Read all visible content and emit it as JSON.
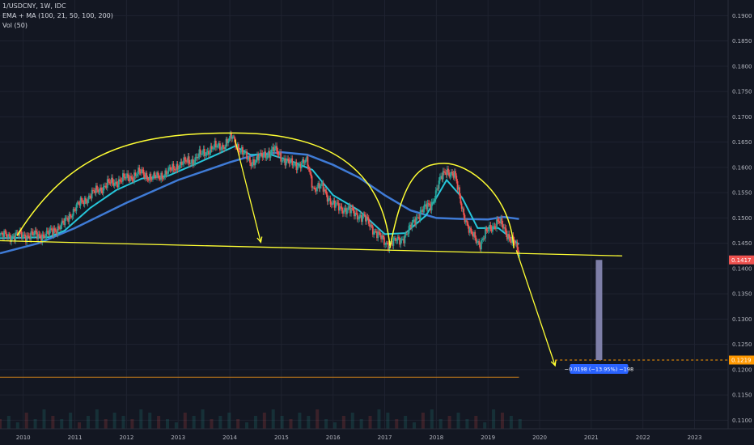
{
  "header": {
    "symbol": "1/USDCNY, 1W, IDC",
    "indicator": "EMA + MA (100, 21, 50, 100, 200)",
    "volume": "Vol (50)"
  },
  "colors": {
    "background": "#131722",
    "grid": "#1f2330",
    "up_candle": "#26a69a",
    "down_candle": "#ef5350",
    "ema_fast": "#26c6da",
    "ma_slow": "#3f7bd6",
    "pattern": "#ffff33",
    "current_price_bg": "#ef5350",
    "target_bg": "#ff9800",
    "measure_bar": "#7e7fa8",
    "measure_label_bg": "#2962ff"
  },
  "chart_data": {
    "type": "line",
    "x_axis": {
      "range": [
        2009.55,
        2023.65
      ],
      "tick_labels": [
        "2010",
        "2011",
        "2012",
        "2013",
        "2014",
        "2015",
        "2016",
        "2017",
        "2018",
        "2019",
        "2020",
        "2021",
        "2022",
        "2023"
      ]
    },
    "y_axis": {
      "range": [
        0.1083,
        0.1931
      ],
      "position": "right",
      "tick_labels": [
        "0.1900",
        "0.1850",
        "0.1800",
        "0.1750",
        "0.1700",
        "0.1650",
        "0.1600",
        "0.1550",
        "0.1500",
        "0.1450",
        "0.1400",
        "0.1350",
        "0.1300",
        "0.1250",
        "0.1200",
        "0.1150",
        "0.1100"
      ]
    },
    "grid": true,
    "series": [
      {
        "kind": "price",
        "points": [
          [
            2009.55,
            0.1465
          ],
          [
            2010.45,
            0.1466
          ],
          [
            2010.8,
            0.149
          ],
          [
            2011.0,
            0.152
          ],
          [
            2011.3,
            0.1545
          ],
          [
            2011.6,
            0.1565
          ],
          [
            2011.9,
            0.1575
          ],
          [
            2012.3,
            0.159
          ],
          [
            2012.5,
            0.1578
          ],
          [
            2012.8,
            0.159
          ],
          [
            2013.0,
            0.1605
          ],
          [
            2013.3,
            0.1615
          ],
          [
            2013.6,
            0.1635
          ],
          [
            2013.9,
            0.1645
          ],
          [
            2014.05,
            0.166
          ],
          [
            2014.2,
            0.1635
          ],
          [
            2014.4,
            0.161
          ],
          [
            2014.6,
            0.162
          ],
          [
            2014.85,
            0.1635
          ],
          [
            2015.0,
            0.162
          ],
          [
            2015.2,
            0.1605
          ],
          [
            2015.5,
            0.161
          ],
          [
            2015.62,
            0.156
          ],
          [
            2015.8,
            0.156
          ],
          [
            2016.0,
            0.1525
          ],
          [
            2016.3,
            0.1515
          ],
          [
            2016.6,
            0.15
          ],
          [
            2016.85,
            0.147
          ],
          [
            2017.0,
            0.145
          ],
          [
            2017.3,
            0.1455
          ],
          [
            2017.5,
            0.148
          ],
          [
            2017.7,
            0.1515
          ],
          [
            2017.9,
            0.1525
          ],
          [
            2018.05,
            0.157
          ],
          [
            2018.2,
            0.1595
          ],
          [
            2018.35,
            0.1585
          ],
          [
            2018.5,
            0.152
          ],
          [
            2018.65,
            0.147
          ],
          [
            2018.85,
            0.145
          ],
          [
            2019.0,
            0.1475
          ],
          [
            2019.2,
            0.1495
          ],
          [
            2019.35,
            0.147
          ],
          [
            2019.5,
            0.1455
          ],
          [
            2019.62,
            0.1417
          ]
        ]
      },
      {
        "name": "EMA + MA (100, 21, 50, 100, 200)",
        "kind": "ema",
        "points": [
          [
            2009.55,
            0.146
          ],
          [
            2010.5,
            0.1462
          ],
          [
            2010.8,
            0.1475
          ],
          [
            2011.3,
            0.152
          ],
          [
            2011.8,
            0.1555
          ],
          [
            2012.3,
            0.1578
          ],
          [
            2012.8,
            0.1583
          ],
          [
            2013.3,
            0.1605
          ],
          [
            2013.8,
            0.1628
          ],
          [
            2014.1,
            0.1642
          ],
          [
            2014.4,
            0.1625
          ],
          [
            2014.8,
            0.1625
          ],
          [
            2015.2,
            0.1612
          ],
          [
            2015.6,
            0.1595
          ],
          [
            2016.0,
            0.1545
          ],
          [
            2016.5,
            0.1515
          ],
          [
            2017.0,
            0.1468
          ],
          [
            2017.4,
            0.147
          ],
          [
            2017.8,
            0.1505
          ],
          [
            2018.2,
            0.1575
          ],
          [
            2018.5,
            0.154
          ],
          [
            2018.8,
            0.148
          ],
          [
            2019.2,
            0.148
          ],
          [
            2019.6,
            0.1448
          ]
        ]
      },
      {
        "name": "EMA + MA (100, 21, 50, 100, 200)",
        "kind": "ma",
        "points": [
          [
            2009.55,
            0.143
          ],
          [
            2010.3,
            0.145
          ],
          [
            2011.0,
            0.148
          ],
          [
            2012.0,
            0.153
          ],
          [
            2013.0,
            0.1575
          ],
          [
            2014.0,
            0.161
          ],
          [
            2014.5,
            0.1625
          ],
          [
            2015.0,
            0.163
          ],
          [
            2015.5,
            0.1625
          ],
          [
            2016.0,
            0.1605
          ],
          [
            2016.5,
            0.158
          ],
          [
            2017.0,
            0.1545
          ],
          [
            2017.5,
            0.1515
          ],
          [
            2018.0,
            0.15
          ],
          [
            2018.5,
            0.1498
          ],
          [
            2019.0,
            0.1497
          ],
          [
            2019.3,
            0.1502
          ],
          [
            2019.6,
            0.1498
          ]
        ]
      }
    ],
    "volume": [
      3,
      4,
      2,
      5,
      3,
      6,
      4,
      3,
      5,
      2,
      4,
      6,
      3,
      5,
      4,
      3,
      6,
      5,
      4,
      3,
      2,
      5,
      4,
      6,
      3,
      4,
      5,
      3,
      2,
      4,
      5,
      6,
      4,
      3,
      5,
      4,
      6,
      3,
      2,
      4,
      5,
      3,
      4,
      6,
      5,
      3,
      4,
      2,
      5,
      6,
      3,
      4,
      5,
      3,
      4,
      2,
      6,
      5,
      4,
      3
    ],
    "annotations": {
      "neckline": [
        [
          2009.55,
          0.1455
        ],
        [
          2021.6,
          0.1425
        ]
      ],
      "arcs": [
        {
          "from": [
            2009.88,
            0.1465
          ],
          "peak": [
            2014.1,
            0.1668
          ],
          "to": [
            2017.1,
            0.1445
          ]
        },
        {
          "from": [
            2017.1,
            0.144
          ],
          "peak": [
            2018.15,
            0.1608
          ],
          "to": [
            2019.5,
            0.144
          ]
        }
      ],
      "arrows": [
        {
          "from": [
            2014.1,
            0.1655
          ],
          "to": [
            2014.6,
            0.1452
          ]
        },
        {
          "from": [
            2019.55,
            0.1436
          ],
          "to": [
            2020.3,
            0.1208
          ]
        }
      ],
      "target_line": {
        "y": 0.1219,
        "from_x": 2020.3
      },
      "bottom_line": {
        "y": 0.1185,
        "to_x": 2019.6
      },
      "measure": {
        "x": 2021.15,
        "from_y": 0.1417,
        "to_y": 0.1219,
        "label": "−0.0198 (−13.95%) −198"
      },
      "current_price": {
        "value": 0.1417,
        "label": "0.1417"
      },
      "target_price": {
        "value": 0.1219,
        "label": "0.1219"
      }
    }
  }
}
